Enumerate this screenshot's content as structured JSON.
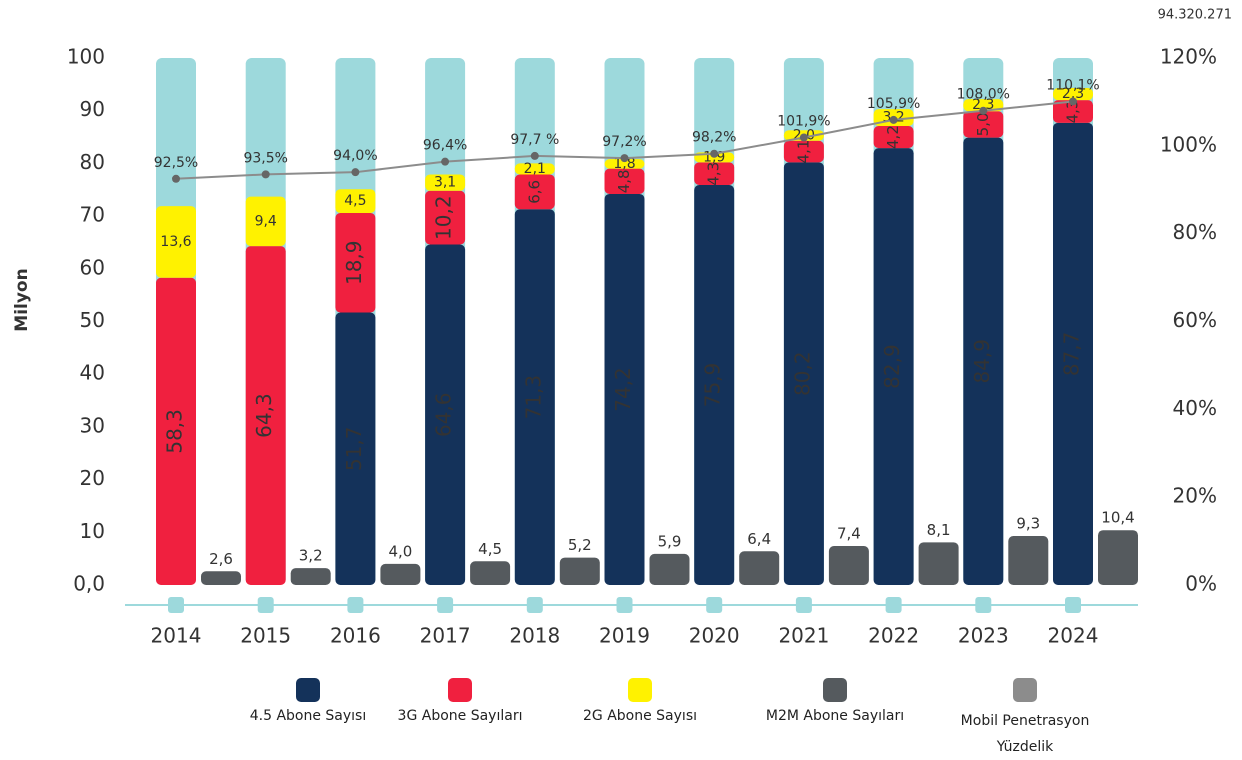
{
  "chart_data": {
    "type": "bar",
    "annotation": "94.320.271",
    "y_label": "Milyon",
    "categories": [
      "2014",
      "2015",
      "2016",
      "2017",
      "2018",
      "2019",
      "2020",
      "2021",
      "2022",
      "2023",
      "2024"
    ],
    "series": [
      {
        "name": "4.5 Abone Sayısı",
        "color": "#14325a",
        "type": "bar",
        "stacked": true,
        "values": [
          null,
          null,
          51.7,
          64.6,
          71.3,
          74.2,
          75.9,
          80.2,
          82.9,
          84.9,
          87.7
        ],
        "value_labels": [
          null,
          null,
          "51,7",
          "64,6",
          "71,3",
          "74,2",
          "75,9",
          "80,2",
          "82,9",
          "84,9",
          "87,7"
        ]
      },
      {
        "name": "3G Abone Sayıları",
        "color": "#f0203f",
        "type": "bar",
        "stacked": true,
        "values": [
          58.3,
          64.3,
          18.9,
          10.2,
          6.6,
          4.8,
          4.3,
          4.1,
          4.2,
          5.0,
          4.3
        ],
        "value_labels": [
          "58,3",
          "64,3",
          "18,9",
          "10,2",
          "6,6",
          "4,8",
          "4,3",
          "4,1",
          "4,2",
          "5,0",
          "4,3"
        ]
      },
      {
        "name": "2G Abone Sayısı",
        "color": "#fff200",
        "type": "bar",
        "stacked": true,
        "values": [
          13.6,
          9.4,
          4.5,
          3.1,
          2.1,
          1.8,
          1.9,
          2.0,
          3.2,
          2.3,
          2.3
        ],
        "value_labels": [
          "13,6",
          "9,4",
          "4,5",
          "3,1",
          "2,1",
          "1,8",
          "1,9",
          "2,0",
          "3,2",
          "2,3",
          "2,3"
        ]
      },
      {
        "name": "M2M Abone Sayıları",
        "color": "#555a5e",
        "type": "bar",
        "stacked": false,
        "values": [
          2.6,
          3.2,
          4.0,
          4.5,
          5.2,
          5.9,
          6.4,
          7.4,
          8.1,
          9.3,
          10.4
        ],
        "value_labels": [
          "2,6",
          "3,2",
          "4,0",
          "4,5",
          "5,2",
          "5,9",
          "6,4",
          "7,4",
          "8,1",
          "9,3",
          "10,4"
        ]
      },
      {
        "name": "Mobil Penetrasyon Yüzdelik",
        "color": "#8c8c8c",
        "type": "line",
        "axis": "y2",
        "values": [
          92.5,
          93.5,
          94.0,
          96.4,
          97.7,
          97.2,
          98.2,
          101.9,
          105.9,
          108.0,
          110.1
        ],
        "value_labels": [
          "92,5%",
          "93,5%",
          "94,0%",
          "96,4%",
          "97,7 %",
          "97,2%",
          "98,2%",
          "101,9%",
          "105,9%",
          "108,0%",
          "110,1%"
        ]
      }
    ],
    "ylim": [
      0,
      100
    ],
    "yticks": [
      {
        "value": 0,
        "label": "0,0"
      },
      10,
      20,
      30,
      40,
      50,
      60,
      70,
      80,
      90,
      100
    ],
    "y2lim": [
      0,
      120
    ],
    "y2ticks": [
      {
        "value": 0,
        "label": "0%"
      },
      {
        "value": 20,
        "label": "20%"
      },
      {
        "value": 40,
        "label": "40%"
      },
      {
        "value": 60,
        "label": "60%"
      },
      {
        "value": 80,
        "label": "80%"
      },
      {
        "value": 100,
        "label": "100%"
      },
      {
        "value": 120,
        "label": "120%"
      }
    ],
    "grid": false
  }
}
